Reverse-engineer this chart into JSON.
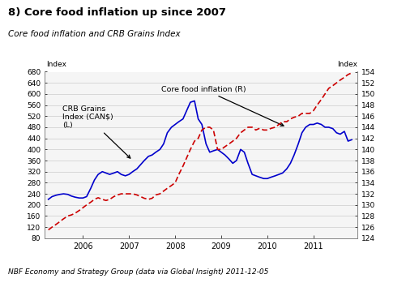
{
  "title": "8) Core food inflation up since 2007",
  "subtitle": "Core food inflation and CRB Grains Index",
  "footer": "NBF Economy and Strategy Group (data via Global Insight) 2011-12-05",
  "left_label": "Index",
  "right_label": "Index",
  "left_ylim": [
    80,
    680
  ],
  "right_ylim": [
    124,
    154
  ],
  "left_yticks": [
    80,
    120,
    160,
    200,
    240,
    280,
    320,
    360,
    400,
    440,
    480,
    520,
    560,
    600,
    640,
    680
  ],
  "right_yticks": [
    124,
    126,
    128,
    130,
    132,
    134,
    136,
    138,
    140,
    142,
    144,
    146,
    148,
    150,
    152,
    154
  ],
  "crb_color": "#0000CC",
  "core_color": "#CC0000",
  "crb_x": [
    2005.25,
    2005.33,
    2005.42,
    2005.5,
    2005.58,
    2005.67,
    2005.75,
    2005.83,
    2005.92,
    2006.0,
    2006.08,
    2006.17,
    2006.25,
    2006.33,
    2006.42,
    2006.5,
    2006.58,
    2006.67,
    2006.75,
    2006.83,
    2006.92,
    2007.0,
    2007.08,
    2007.17,
    2007.25,
    2007.33,
    2007.42,
    2007.5,
    2007.58,
    2007.67,
    2007.75,
    2007.83,
    2007.92,
    2008.0,
    2008.08,
    2008.17,
    2008.25,
    2008.33,
    2008.42,
    2008.5,
    2008.58,
    2008.67,
    2008.75,
    2008.83,
    2008.92,
    2009.0,
    2009.08,
    2009.17,
    2009.25,
    2009.33,
    2009.42,
    2009.5,
    2009.58,
    2009.67,
    2009.75,
    2009.83,
    2009.92,
    2010.0,
    2010.08,
    2010.17,
    2010.25,
    2010.33,
    2010.42,
    2010.5,
    2010.58,
    2010.67,
    2010.75,
    2010.83,
    2010.92,
    2011.0,
    2011.08,
    2011.17,
    2011.25,
    2011.33,
    2011.42,
    2011.5,
    2011.58,
    2011.67,
    2011.75,
    2011.83
  ],
  "crb_y": [
    220,
    230,
    235,
    238,
    240,
    238,
    232,
    228,
    225,
    225,
    230,
    260,
    290,
    310,
    320,
    315,
    310,
    315,
    320,
    310,
    305,
    310,
    320,
    330,
    345,
    360,
    375,
    380,
    390,
    400,
    420,
    460,
    480,
    490,
    500,
    510,
    540,
    570,
    575,
    510,
    490,
    420,
    390,
    395,
    400,
    390,
    380,
    365,
    350,
    360,
    400,
    390,
    350,
    310,
    305,
    300,
    295,
    295,
    300,
    305,
    310,
    315,
    330,
    350,
    380,
    420,
    460,
    480,
    490,
    490,
    495,
    490,
    480,
    480,
    475,
    460,
    455,
    465,
    430,
    435
  ],
  "core_x": [
    2005.25,
    2005.33,
    2005.42,
    2005.5,
    2005.58,
    2005.67,
    2005.75,
    2005.83,
    2005.92,
    2006.0,
    2006.08,
    2006.17,
    2006.25,
    2006.33,
    2006.42,
    2006.5,
    2006.58,
    2006.67,
    2006.75,
    2006.83,
    2006.92,
    2007.0,
    2007.08,
    2007.17,
    2007.25,
    2007.33,
    2007.42,
    2007.5,
    2007.58,
    2007.67,
    2007.75,
    2007.83,
    2007.92,
    2008.0,
    2008.08,
    2008.17,
    2008.25,
    2008.33,
    2008.42,
    2008.5,
    2008.58,
    2008.67,
    2008.75,
    2008.83,
    2008.92,
    2009.0,
    2009.08,
    2009.17,
    2009.25,
    2009.33,
    2009.42,
    2009.5,
    2009.58,
    2009.67,
    2009.75,
    2009.83,
    2009.92,
    2010.0,
    2010.08,
    2010.17,
    2010.25,
    2010.33,
    2010.42,
    2010.5,
    2010.58,
    2010.67,
    2010.75,
    2010.83,
    2010.92,
    2011.0,
    2011.08,
    2011.17,
    2011.25,
    2011.33,
    2011.42,
    2011.5,
    2011.58,
    2011.67,
    2011.75,
    2011.83
  ],
  "core_y": [
    125.5,
    126.0,
    126.5,
    127.0,
    127.5,
    128.0,
    128.2,
    128.5,
    129.0,
    129.5,
    130.0,
    130.5,
    131.0,
    131.3,
    131.0,
    130.8,
    131.0,
    131.5,
    131.8,
    132.0,
    132.0,
    132.0,
    132.0,
    131.8,
    131.5,
    131.2,
    131.0,
    131.2,
    131.8,
    132.0,
    132.5,
    133.0,
    133.5,
    134.0,
    135.5,
    137.0,
    138.5,
    140.0,
    141.5,
    142.0,
    143.5,
    144.0,
    144.0,
    143.5,
    140.0,
    140.0,
    140.5,
    141.0,
    141.5,
    142.0,
    143.0,
    143.5,
    144.0,
    144.0,
    143.5,
    143.8,
    143.5,
    143.5,
    143.8,
    144.0,
    144.5,
    145.0,
    145.0,
    145.5,
    145.8,
    146.0,
    146.5,
    146.5,
    146.5,
    147.0,
    148.0,
    149.0,
    150.0,
    151.0,
    151.5,
    152.0,
    152.5,
    153.0,
    153.5,
    153.8
  ],
  "xlim": [
    2005.17,
    2011.95
  ],
  "xticks": [
    2006,
    2007,
    2008,
    2009,
    2010,
    2011
  ],
  "border_color": "#888888",
  "grid_color": "#cccccc",
  "bg_color": "#f5f5f5"
}
